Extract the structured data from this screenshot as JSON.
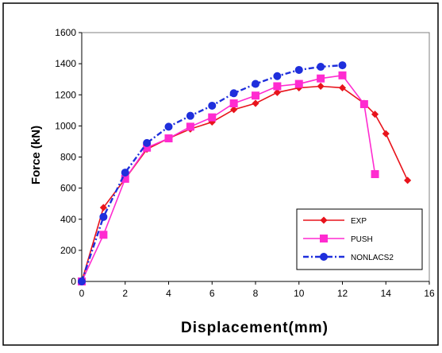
{
  "chart_data": {
    "type": "line",
    "title": "",
    "xlabel": "Displacement(mm)",
    "ylabel": "Force (kN)",
    "xlim": [
      0,
      16
    ],
    "ylim": [
      0,
      1600
    ],
    "x_ticks": [
      "0",
      "2",
      "4",
      "6",
      "8",
      "10",
      "12",
      "14",
      "16"
    ],
    "y_ticks": [
      "0",
      "200",
      "400",
      "600",
      "800",
      "1000",
      "1200",
      "1400",
      "1600"
    ],
    "grid": false,
    "legend_position": "bottom-right",
    "series": [
      {
        "name": "EXP",
        "color": "#e8141c",
        "marker": "diamond",
        "line_style": "solid",
        "points": [
          [
            0,
            0
          ],
          [
            1,
            475
          ],
          [
            2,
            660
          ],
          [
            3,
            850
          ],
          [
            4,
            920
          ],
          [
            5,
            980
          ],
          [
            6,
            1025
          ],
          [
            7,
            1105
          ],
          [
            8,
            1145
          ],
          [
            9,
            1215
          ],
          [
            10,
            1245
          ],
          [
            11,
            1255
          ],
          [
            12,
            1245
          ],
          [
            13,
            1145
          ],
          [
            13.5,
            1075
          ],
          [
            14,
            950
          ],
          [
            15,
            650
          ]
        ]
      },
      {
        "name": "PUSH",
        "color": "#ff2bd0",
        "marker": "square",
        "line_style": "solid",
        "points": [
          [
            0,
            0
          ],
          [
            1,
            300
          ],
          [
            2,
            660
          ],
          [
            3,
            860
          ],
          [
            4,
            920
          ],
          [
            5,
            995
          ],
          [
            6,
            1055
          ],
          [
            7,
            1145
          ],
          [
            8,
            1195
          ],
          [
            9,
            1255
          ],
          [
            10,
            1270
          ],
          [
            11,
            1305
          ],
          [
            12,
            1325
          ],
          [
            13,
            1140
          ],
          [
            13.5,
            690
          ]
        ]
      },
      {
        "name": "NONLACS2",
        "color": "#1f2fdc",
        "marker": "circle",
        "line_style": "dash-dot",
        "points": [
          [
            0,
            0
          ],
          [
            1,
            415
          ],
          [
            2,
            700
          ],
          [
            3,
            890
          ],
          [
            4,
            995
          ],
          [
            5,
            1065
          ],
          [
            6,
            1130
          ],
          [
            7,
            1210
          ],
          [
            8,
            1270
          ],
          [
            9,
            1320
          ],
          [
            10,
            1360
          ],
          [
            11,
            1380
          ],
          [
            12,
            1390
          ]
        ]
      }
    ]
  }
}
